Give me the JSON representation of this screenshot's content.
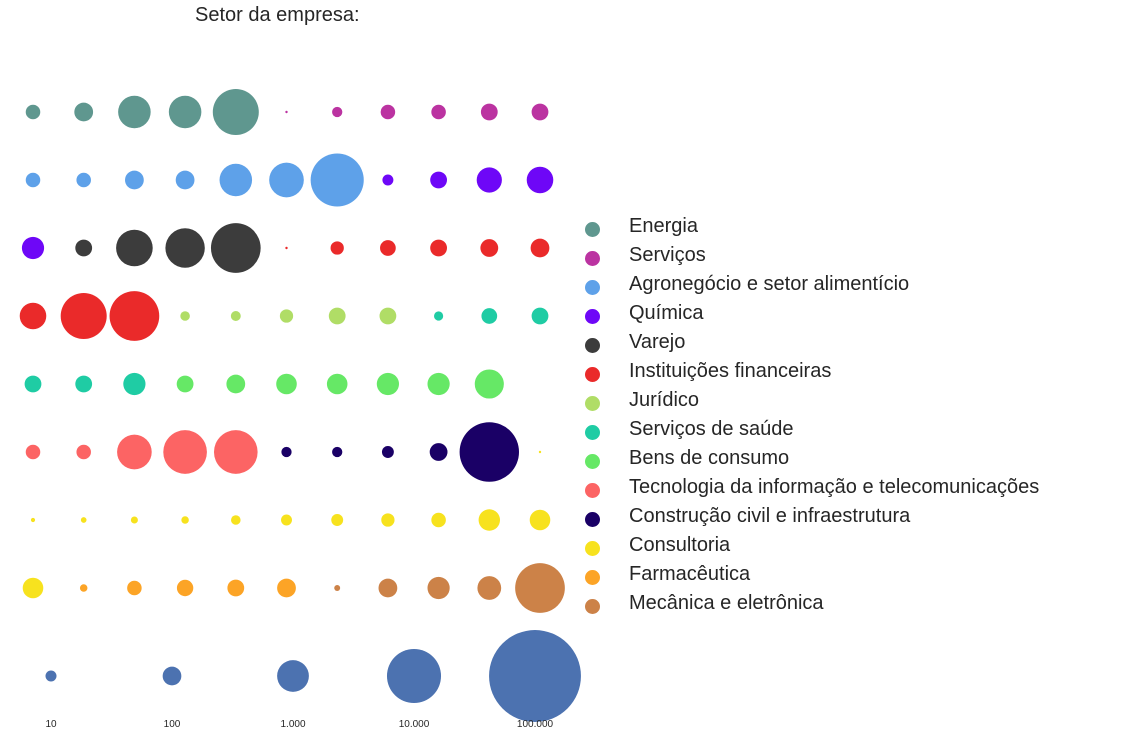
{
  "chart_data": {
    "type": "scatter",
    "title": "Setor da empresa:",
    "encoding": "waffle-style bubble grid: each dot is one company, color = sector, area = company size",
    "categories": [
      {
        "name": "Energia",
        "color": "#5f978f"
      },
      {
        "name": "Serviços",
        "color": "#bb33a1"
      },
      {
        "name": "Agronegócio e setor alimentício",
        "color": "#5ea1e9"
      },
      {
        "name": "Química",
        "color": "#6e07f7"
      },
      {
        "name": "Varejo",
        "color": "#3c3c3c"
      },
      {
        "name": "Instituições financeiras",
        "color": "#ea2a2a"
      },
      {
        "name": "Jurídico",
        "color": "#b0dd66"
      },
      {
        "name": "Serviços de saúde",
        "color": "#1fcca4"
      },
      {
        "name": "Bens de consumo",
        "color": "#66e866"
      },
      {
        "name": "Tecnologia da informação e telecomunicações",
        "color": "#fc6464"
      },
      {
        "name": "Construção civil e infraestrutura",
        "color": "#1a0066"
      },
      {
        "name": "Consultoria",
        "color": "#f7e21e"
      },
      {
        "name": "Farmacêutica",
        "color": "#fca426"
      },
      {
        "name": "Mecânica e eletrônica",
        "color": "#cc8248"
      }
    ],
    "rows": [
      [
        [
          0,
          300
        ],
        [
          0,
          500
        ],
        [
          0,
          1500
        ],
        [
          0,
          1500
        ],
        [
          0,
          3000
        ],
        [
          1,
          5
        ],
        [
          1,
          150
        ],
        [
          1,
          300
        ],
        [
          1,
          300
        ],
        [
          1,
          400
        ],
        [
          1,
          400
        ]
      ],
      [
        [
          2,
          300
        ],
        [
          2,
          300
        ],
        [
          2,
          500
        ],
        [
          2,
          500
        ],
        [
          2,
          1500
        ],
        [
          2,
          1700
        ],
        [
          2,
          4000
        ],
        [
          3,
          170
        ],
        [
          3,
          400
        ],
        [
          3,
          900
        ],
        [
          3,
          1000
        ]
      ],
      [
        [
          3,
          700
        ],
        [
          4,
          400
        ],
        [
          4,
          1900
        ],
        [
          4,
          2200
        ],
        [
          4,
          3500
        ],
        [
          5,
          4
        ],
        [
          5,
          250
        ],
        [
          5,
          350
        ],
        [
          5,
          400
        ],
        [
          5,
          450
        ],
        [
          5,
          500
        ]
      ],
      [
        [
          5,
          1000
        ],
        [
          5,
          3000
        ],
        [
          5,
          3500
        ],
        [
          6,
          130
        ],
        [
          6,
          140
        ],
        [
          6,
          250
        ],
        [
          6,
          400
        ],
        [
          6,
          400
        ],
        [
          7,
          120
        ],
        [
          7,
          350
        ],
        [
          7,
          400
        ]
      ],
      [
        [
          7,
          400
        ],
        [
          7,
          400
        ],
        [
          7,
          700
        ],
        [
          8,
          400
        ],
        [
          8,
          500
        ],
        [
          8,
          600
        ],
        [
          8,
          600
        ],
        [
          8,
          700
        ],
        [
          8,
          700
        ],
        [
          8,
          1200
        ]
      ],
      [
        [
          9,
          300
        ],
        [
          9,
          300
        ],
        [
          9,
          1700
        ],
        [
          9,
          2700
        ],
        [
          9,
          2700
        ],
        [
          10,
          150
        ],
        [
          10,
          150
        ],
        [
          10,
          200
        ],
        [
          10,
          450
        ],
        [
          10,
          5000
        ],
        [
          11,
          4
        ]
      ],
      [
        [
          11,
          25
        ],
        [
          11,
          45
        ],
        [
          11,
          70
        ],
        [
          11,
          80
        ],
        [
          11,
          130
        ],
        [
          11,
          170
        ],
        [
          11,
          200
        ],
        [
          11,
          250
        ],
        [
          11,
          300
        ],
        [
          11,
          650
        ],
        [
          11,
          600
        ]
      ],
      [
        [
          11,
          600
        ],
        [
          12,
          80
        ],
        [
          12,
          300
        ],
        [
          12,
          380
        ],
        [
          12,
          400
        ],
        [
          12,
          500
        ],
        [
          13,
          50
        ],
        [
          13,
          500
        ],
        [
          13,
          700
        ],
        [
          13,
          800
        ],
        [
          13,
          3500
        ]
      ]
    ],
    "size_legend": {
      "color": "#4c72b0",
      "values": [
        10,
        100,
        1000,
        10000,
        100000
      ],
      "labels": [
        "10",
        "100",
        "1.000",
        "10.000",
        "100.000"
      ]
    },
    "xlabel": "",
    "ylabel": ""
  }
}
